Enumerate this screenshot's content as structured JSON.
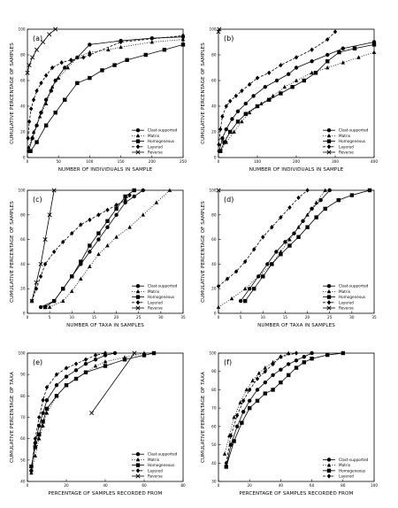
{
  "chart_data": [
    {
      "panel": "(a)",
      "type": "line",
      "xlabel": "NUMBER OF INDIVIDUALS IN SAMPLE",
      "ylabel": "CUMULATIVE PERCENTAGE OF SAMPLES",
      "xlim": [
        0,
        250
      ],
      "ylim": [
        0,
        100
      ],
      "xticks": [
        0,
        50,
        100,
        150,
        200,
        250
      ],
      "yticks": [
        0,
        20,
        40,
        60,
        80,
        100
      ],
      "legend_position": "bottom-right",
      "series": [
        {
          "name": "Clast-supported",
          "marker": "circle",
          "dash": "solid",
          "x": [
            2,
            8,
            15,
            22,
            30,
            38,
            45,
            60,
            80,
            100,
            150,
            200,
            250
          ],
          "y": [
            5,
            15,
            25,
            35,
            45,
            52,
            60,
            70,
            78,
            88,
            91,
            93,
            94
          ]
        },
        {
          "name": "Matrix",
          "marker": "triangle",
          "dash": "dotted",
          "x": [
            2,
            10,
            20,
            30,
            40,
            50,
            65,
            80,
            100,
            130,
            150,
            200,
            250
          ],
          "y": [
            8,
            20,
            32,
            42,
            55,
            62,
            70,
            78,
            82,
            84,
            86,
            90,
            92
          ]
        },
        {
          "name": "Homogeneous",
          "marker": "square",
          "dash": "solid",
          "x": [
            5,
            15,
            30,
            45,
            60,
            80,
            100,
            120,
            140,
            160,
            190,
            220,
            250
          ],
          "y": [
            5,
            12,
            25,
            35,
            45,
            58,
            62,
            68,
            72,
            76,
            80,
            84,
            88
          ]
        },
        {
          "name": "Layered",
          "marker": "diamond",
          "dash": "dashed",
          "x": [
            1,
            3,
            6,
            10,
            15,
            22,
            30,
            40,
            55,
            70,
            90,
            100,
            150,
            250
          ],
          "y": [
            15,
            28,
            38,
            45,
            52,
            58,
            64,
            70,
            74,
            76,
            78,
            80,
            90,
            95
          ]
        },
        {
          "name": "Reverse",
          "marker": "x",
          "dash": "solid",
          "x": [
            0,
            3,
            8,
            15,
            25,
            35,
            45
          ],
          "y": [
            66,
            72,
            78,
            84,
            90,
            96,
            100
          ]
        }
      ]
    },
    {
      "panel": "(b)",
      "type": "line",
      "xlabel": "NUMBER OF INDIVIDUALS IN SAMPLE",
      "ylabel": "CUMULATIVE PERCENTAGE OF SAMPLES",
      "xlim": [
        0,
        400
      ],
      "ylim": [
        0,
        100
      ],
      "xticks": [
        0,
        100,
        200,
        300,
        400
      ],
      "yticks": [
        0,
        20,
        40,
        60,
        80,
        100
      ],
      "legend_position": "bottom-right",
      "series": [
        {
          "name": "Clast-supported",
          "marker": "circle",
          "dash": "solid",
          "x": [
            2,
            10,
            20,
            35,
            50,
            70,
            90,
            120,
            150,
            180,
            200,
            240,
            280,
            320,
            400
          ],
          "y": [
            5,
            15,
            22,
            30,
            36,
            42,
            48,
            55,
            60,
            65,
            70,
            75,
            80,
            85,
            90
          ]
        },
        {
          "name": "Matrix",
          "marker": "triangle",
          "dash": "dotted",
          "x": [
            5,
            20,
            40,
            60,
            80,
            110,
            140,
            170,
            200,
            240,
            280,
            320,
            360,
            400
          ],
          "y": [
            5,
            12,
            20,
            28,
            35,
            42,
            48,
            55,
            60,
            66,
            70,
            74,
            78,
            82
          ]
        },
        {
          "name": "Homogeneous",
          "marker": "square",
          "dash": "solid",
          "x": [
            5,
            15,
            30,
            50,
            70,
            100,
            130,
            160,
            190,
            220,
            250,
            280,
            310,
            350,
            400
          ],
          "y": [
            5,
            12,
            20,
            28,
            34,
            40,
            45,
            50,
            55,
            60,
            66,
            75,
            82,
            85,
            88
          ]
        },
        {
          "name": "Layered",
          "marker": "diamond",
          "dash": "dashed",
          "x": [
            1,
            5,
            10,
            20,
            30,
            45,
            60,
            80,
            100,
            130,
            160,
            200,
            240,
            280,
            300
          ],
          "y": [
            10,
            22,
            32,
            40,
            44,
            48,
            52,
            57,
            62,
            66,
            72,
            78,
            84,
            92,
            98
          ]
        },
        {
          "name": "Reverse",
          "marker": "x",
          "dash": "solid",
          "x": [
            0,
            2
          ],
          "y": [
            98,
            100
          ]
        }
      ]
    },
    {
      "panel": "(c)",
      "type": "line",
      "xlabel": "NUMBER OF TAXA IN SAMPLES",
      "ylabel": "CUMULATIVE PERCENTAGE OF SAMPLES",
      "xlim": [
        0,
        35
      ],
      "ylim": [
        0,
        100
      ],
      "xticks": [
        0,
        5,
        10,
        15,
        20,
        25,
        30,
        35
      ],
      "yticks": [
        0,
        20,
        40,
        60,
        80,
        100
      ],
      "legend_position": "bottom-right",
      "series": [
        {
          "name": "Clast-supported",
          "marker": "circle",
          "dash": "solid",
          "x": [
            3,
            6,
            8,
            10,
            12,
            14,
            16,
            18,
            20,
            22,
            24,
            26
          ],
          "y": [
            5,
            10,
            20,
            30,
            40,
            50,
            60,
            70,
            80,
            90,
            95,
            100
          ]
        },
        {
          "name": "Matrix",
          "marker": "triangle",
          "dash": "dotted",
          "x": [
            5,
            8,
            10,
            12,
            14,
            16,
            18,
            20,
            23,
            26,
            29,
            32
          ],
          "y": [
            5,
            10,
            18,
            28,
            38,
            48,
            55,
            62,
            70,
            80,
            90,
            100
          ]
        },
        {
          "name": "Homogeneous",
          "marker": "square",
          "dash": "solid",
          "x": [
            4,
            6,
            8,
            10,
            12,
            14,
            16,
            18,
            20,
            22,
            24
          ],
          "y": [
            5,
            10,
            20,
            30,
            42,
            55,
            65,
            75,
            85,
            95,
            100
          ]
        },
        {
          "name": "Layered",
          "marker": "diamond",
          "dash": "dashed",
          "x": [
            1,
            2,
            3,
            4,
            6,
            8,
            10,
            12,
            14,
            16,
            18,
            20,
            22,
            23
          ],
          "y": [
            10,
            20,
            30,
            40,
            50,
            58,
            65,
            72,
            76,
            80,
            84,
            88,
            92,
            96
          ]
        },
        {
          "name": "Reverse",
          "marker": "x",
          "dash": "solid",
          "x": [
            1,
            2,
            3,
            4,
            5,
            6
          ],
          "y": [
            10,
            25,
            40,
            60,
            80,
            100
          ]
        }
      ]
    },
    {
      "panel": "(d)",
      "type": "line",
      "xlabel": "NUMBER OF TAXA IN SAMPLES",
      "ylabel": "CUMULATIVE PERCENTAGE OF SAMPLES",
      "xlim": [
        0,
        35
      ],
      "ylim": [
        0,
        100
      ],
      "xticks": [
        0,
        5,
        10,
        15,
        20,
        25,
        30,
        35
      ],
      "yticks": [
        0,
        20,
        40,
        60,
        80,
        100
      ],
      "legend_position": "bottom-right",
      "series": [
        {
          "name": "Clast-supported",
          "marker": "circle",
          "dash": "solid",
          "x": [
            5,
            7,
            9,
            11,
            13,
            15,
            17,
            19,
            21,
            23,
            25
          ],
          "y": [
            10,
            20,
            30,
            40,
            50,
            58,
            65,
            75,
            85,
            92,
            100
          ]
        },
        {
          "name": "Matrix",
          "marker": "triangle",
          "dash": "dotted",
          "x": [
            0,
            3,
            6,
            9,
            12,
            14,
            16,
            18,
            20,
            22,
            24
          ],
          "y": [
            5,
            12,
            20,
            30,
            40,
            50,
            60,
            70,
            80,
            90,
            100
          ]
        },
        {
          "name": "Homogeneous",
          "marker": "square",
          "dash": "solid",
          "x": [
            6,
            8,
            10,
            12,
            14,
            16,
            18,
            20,
            22,
            24,
            27,
            30,
            34
          ],
          "y": [
            10,
            20,
            30,
            40,
            48,
            55,
            62,
            70,
            78,
            85,
            92,
            96,
            100
          ]
        },
        {
          "name": "Layered",
          "marker": "diamond",
          "dash": "dashed",
          "x": [
            0,
            2,
            4,
            6,
            8,
            10,
            12,
            14,
            16,
            18,
            20
          ],
          "y": [
            22,
            28,
            34,
            42,
            52,
            62,
            70,
            78,
            86,
            94,
            100
          ]
        },
        {
          "name": "Reverse",
          "marker": "x",
          "dash": "solid",
          "x": [
            0
          ],
          "y": [
            100
          ]
        }
      ]
    },
    {
      "panel": "(e)",
      "type": "line",
      "xlabel": "PERCENTAGE OF SAMPLES RECORDED FROM",
      "ylabel": "CUMULATIVE PERCENTAGE OF TAXA",
      "xlim": [
        0,
        80
      ],
      "ylim": [
        40,
        100
      ],
      "xticks": [
        0,
        20,
        40,
        60,
        80
      ],
      "yticks": [
        40,
        50,
        60,
        70,
        80,
        90,
        100
      ],
      "legend_position": "bottom-right",
      "series": [
        {
          "name": "Clast-supported",
          "marker": "circle",
          "dash": "solid",
          "x": [
            2,
            4,
            6,
            8,
            10,
            15,
            20,
            25,
            30,
            35,
            40,
            45
          ],
          "y": [
            45,
            58,
            66,
            72,
            78,
            85,
            89,
            92,
            95,
            97,
            99,
            100
          ]
        },
        {
          "name": "Matrix",
          "marker": "triangle",
          "dash": "dotted",
          "x": [
            2,
            4,
            6,
            8,
            10,
            15,
            20,
            25,
            30,
            35,
            40,
            50,
            60
          ],
          "y": [
            44,
            52,
            60,
            66,
            72,
            80,
            85,
            88,
            91,
            94,
            96,
            98,
            100
          ]
        },
        {
          "name": "Homogeneous",
          "marker": "square",
          "dash": "solid",
          "x": [
            2,
            4,
            6,
            8,
            10,
            15,
            20,
            25,
            30,
            40,
            50,
            60,
            65
          ],
          "y": [
            47,
            56,
            62,
            68,
            74,
            80,
            85,
            88,
            91,
            94,
            97,
            99,
            100
          ]
        },
        {
          "name": "Layered",
          "marker": "diamond",
          "dash": "dashed",
          "x": [
            2,
            4,
            6,
            8,
            10,
            15,
            20,
            25,
            30,
            35,
            40
          ],
          "y": [
            45,
            60,
            70,
            78,
            84,
            90,
            93,
            95,
            97,
            99,
            100
          ]
        },
        {
          "name": "Reverse",
          "marker": "x",
          "dash": "solid",
          "x": [
            33,
            55
          ],
          "y": [
            72,
            100
          ]
        }
      ]
    },
    {
      "panel": "(f)",
      "type": "line",
      "xlabel": "PERCENTAGE OF SAMPLES RECORDED FROM",
      "ylabel": "CUMULATIVE PERCENTAGE OF TAXA",
      "xlim": [
        0,
        100
      ],
      "ylim": [
        30,
        100
      ],
      "xticks": [
        0,
        20,
        40,
        60,
        80,
        100
      ],
      "yticks": [
        30,
        40,
        50,
        60,
        70,
        80,
        90,
        100
      ],
      "legend_position": "bottom-right",
      "series": [
        {
          "name": "Clast-supported",
          "marker": "circle",
          "dash": "solid",
          "x": [
            5,
            8,
            12,
            16,
            20,
            25,
            30,
            35,
            40,
            45,
            50,
            55,
            60
          ],
          "y": [
            38,
            50,
            60,
            68,
            74,
            80,
            84,
            88,
            91,
            94,
            96,
            98,
            100
          ]
        },
        {
          "name": "Matrix",
          "marker": "triangle",
          "dash": "dotted",
          "x": [
            4,
            7,
            10,
            14,
            18,
            22,
            26,
            30,
            35,
            40,
            45
          ],
          "y": [
            45,
            55,
            65,
            73,
            80,
            85,
            89,
            92,
            95,
            98,
            100
          ]
        },
        {
          "name": "Homogeneous",
          "marker": "square",
          "dash": "solid",
          "x": [
            5,
            10,
            15,
            20,
            25,
            30,
            35,
            40,
            45,
            50,
            55,
            60,
            70,
            80
          ],
          "y": [
            38,
            52,
            62,
            70,
            74,
            78,
            80,
            84,
            88,
            92,
            95,
            97,
            99,
            100
          ]
        },
        {
          "name": "Layered",
          "marker": "diamond",
          "dash": "dashed",
          "x": [
            5,
            8,
            12,
            16,
            20,
            25,
            30,
            35,
            40,
            50
          ],
          "y": [
            40,
            55,
            66,
            74,
            80,
            86,
            90,
            94,
            98,
            100
          ]
        }
      ]
    }
  ]
}
